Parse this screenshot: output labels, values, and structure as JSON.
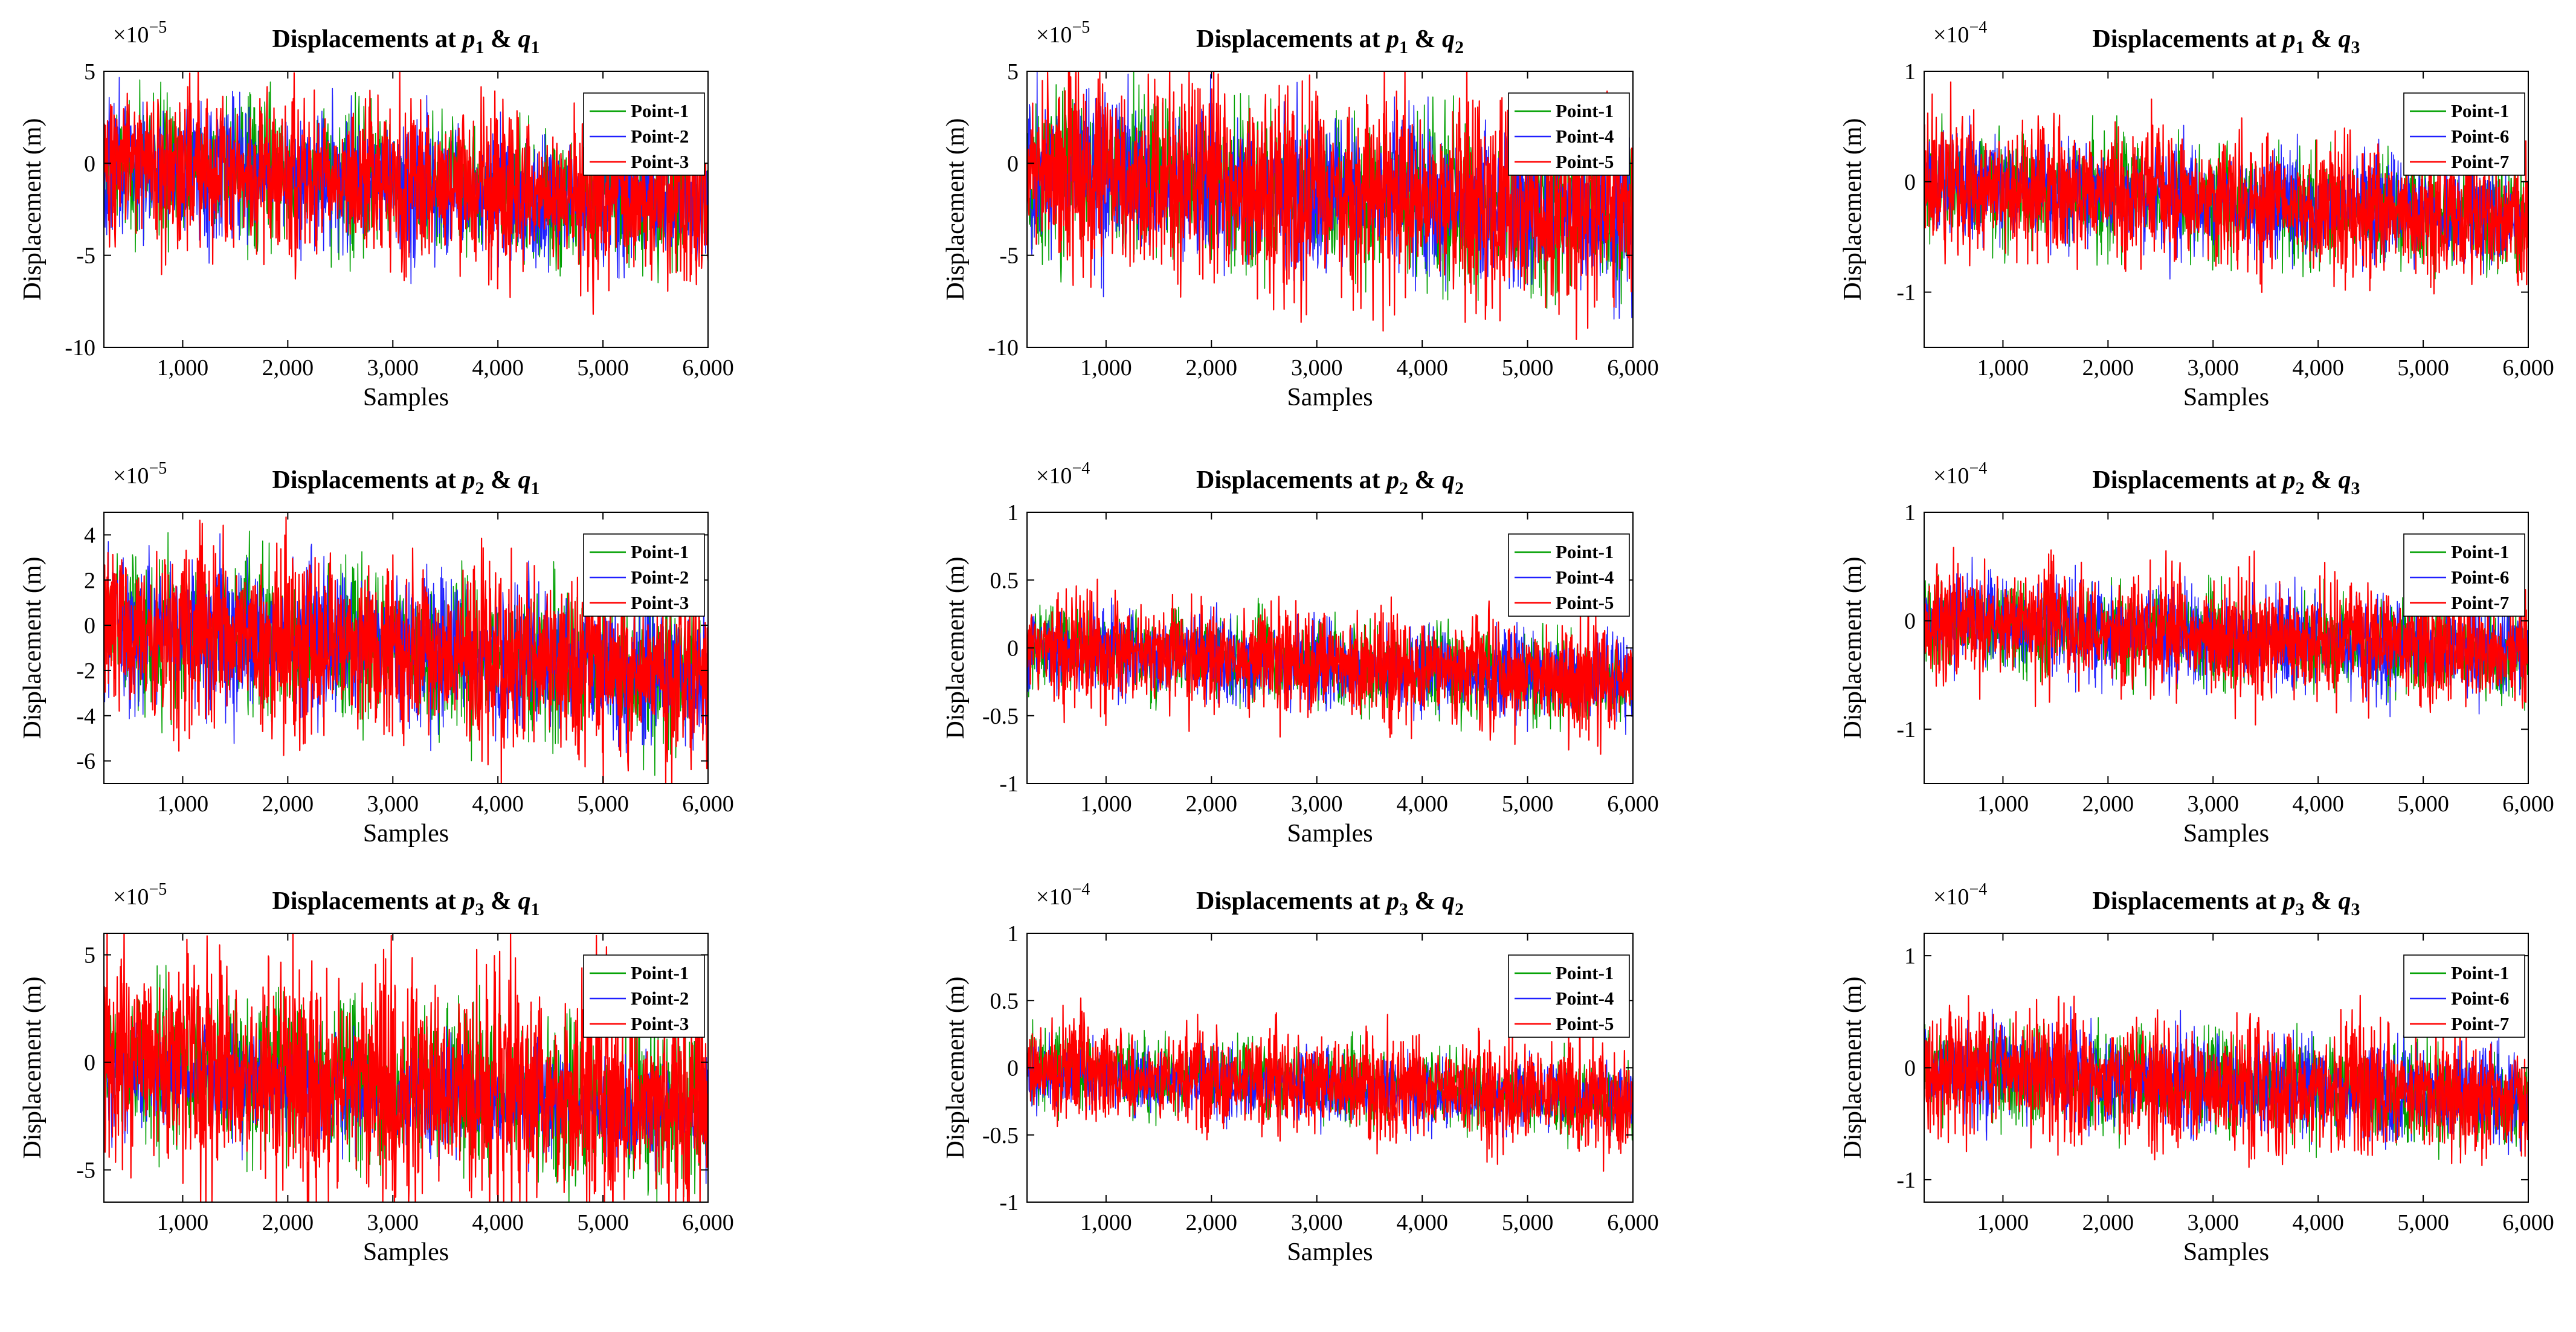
{
  "figure": {
    "description": "3x3 grid of displacement time-history plots"
  },
  "chart_data": [
    {
      "type": "line",
      "title": "Displacements at",
      "title_p": "p",
      "p_sub": "1",
      "title_q": "q",
      "q_sub": "1",
      "amp": "&",
      "xlabel": "Samples",
      "ylabel": "Displacement (m)",
      "xlim": [
        250,
        6000
      ],
      "ylim": [
        -10,
        5
      ],
      "yticks": [
        "5",
        "0",
        "-5",
        "-10"
      ],
      "ytick_values": [
        5,
        0,
        -5,
        -10
      ],
      "xticks": [
        "1,000",
        "2,000",
        "3,000",
        "4,000",
        "5,000",
        "6,000"
      ],
      "xtick_values": [
        1000,
        2000,
        3000,
        4000,
        5000,
        6000
      ],
      "exponent_base": "×10",
      "exponent": "−5",
      "grid": false,
      "legend_position": "top-right",
      "series": [
        {
          "name": "Point-1",
          "color": "#00a000",
          "mean_start": 0,
          "mean_end": -2.2,
          "amplitude": 3.0
        },
        {
          "name": "Point-2",
          "color": "#2020ff",
          "mean_start": 0,
          "mean_end": -2.2,
          "amplitude": 3.0
        },
        {
          "name": "Point-3",
          "color": "#ff0000",
          "mean_start": 0,
          "mean_end": -2.2,
          "amplitude": 3.6
        }
      ]
    },
    {
      "type": "line",
      "title": "Displacements at",
      "title_p": "p",
      "p_sub": "1",
      "title_q": "q",
      "q_sub": "2",
      "amp": "&",
      "xlabel": "Samples",
      "ylabel": "Displacement (m)",
      "xlim": [
        250,
        6000
      ],
      "ylim": [
        -10,
        5
      ],
      "yticks": [
        "5",
        "0",
        "-5",
        "-10"
      ],
      "ytick_values": [
        5,
        0,
        -5,
        -10
      ],
      "xticks": [
        "1,000",
        "2,000",
        "3,000",
        "4,000",
        "5,000",
        "6,000"
      ],
      "xtick_values": [
        1000,
        2000,
        3000,
        4000,
        5000,
        6000
      ],
      "exponent_base": "×10",
      "exponent": "−5",
      "grid": false,
      "legend_position": "top-right",
      "series": [
        {
          "name": "Point-1",
          "color": "#00a000",
          "mean_start": -0.5,
          "mean_end": -2.8,
          "amplitude": 3.5
        },
        {
          "name": "Point-4",
          "color": "#2020ff",
          "mean_start": -0.5,
          "mean_end": -2.8,
          "amplitude": 3.5
        },
        {
          "name": "Point-5",
          "color": "#ff0000",
          "mean_start": -0.5,
          "mean_end": -2.8,
          "amplitude": 4.5
        }
      ]
    },
    {
      "type": "line",
      "title": "Displacements at",
      "title_p": "p",
      "p_sub": "1",
      "title_q": "q",
      "q_sub": "3",
      "amp": "&",
      "xlabel": "Samples",
      "ylabel": "Displacement (m)",
      "xlim": [
        250,
        6000
      ],
      "ylim": [
        -1.5,
        1
      ],
      "yticks": [
        "1",
        "0",
        "-1"
      ],
      "ytick_values": [
        1,
        0,
        -1
      ],
      "xticks": [
        "1,000",
        "2,000",
        "3,000",
        "4,000",
        "5,000",
        "6,000"
      ],
      "xtick_values": [
        1000,
        2000,
        3000,
        4000,
        5000,
        6000
      ],
      "exponent_base": "×10",
      "exponent": "−4",
      "grid": false,
      "legend_position": "top-right",
      "series": [
        {
          "name": "Point-1",
          "color": "#00a000",
          "mean_start": 0,
          "mean_end": -0.35,
          "amplitude": 0.4
        },
        {
          "name": "Point-6",
          "color": "#2020ff",
          "mean_start": 0,
          "mean_end": -0.35,
          "amplitude": 0.4
        },
        {
          "name": "Point-7",
          "color": "#ff0000",
          "mean_start": 0,
          "mean_end": -0.35,
          "amplitude": 0.5
        }
      ]
    },
    {
      "type": "line",
      "title": "Displacements at",
      "title_p": "p",
      "p_sub": "2",
      "title_q": "q",
      "q_sub": "1",
      "amp": "&",
      "xlabel": "Samples",
      "ylabel": "Displacement (m)",
      "xlim": [
        250,
        6000
      ],
      "ylim": [
        -7,
        5
      ],
      "yticks": [
        "4",
        "2",
        "0",
        "-2",
        "-4",
        "-6"
      ],
      "ytick_values": [
        4,
        2,
        0,
        -2,
        -4,
        -6
      ],
      "xticks": [
        "1,000",
        "2,000",
        "3,000",
        "4,000",
        "5,000",
        "6,000"
      ],
      "xtick_values": [
        1000,
        2000,
        3000,
        4000,
        5000,
        6000
      ],
      "exponent_base": "×10",
      "exponent": "−5",
      "grid": false,
      "legend_position": "top-right",
      "series": [
        {
          "name": "Point-1",
          "color": "#00a000",
          "mean_start": 0,
          "mean_end": -2.2,
          "amplitude": 2.6
        },
        {
          "name": "Point-2",
          "color": "#2020ff",
          "mean_start": 0,
          "mean_end": -2.2,
          "amplitude": 2.6
        },
        {
          "name": "Point-3",
          "color": "#ff0000",
          "mean_start": 0,
          "mean_end": -2.2,
          "amplitude": 3.2
        }
      ]
    },
    {
      "type": "line",
      "title": "Displacements at",
      "title_p": "p",
      "p_sub": "2",
      "title_q": "q",
      "q_sub": "2",
      "amp": "&",
      "xlabel": "Samples",
      "ylabel": "Displacement (m)",
      "xlim": [
        250,
        6000
      ],
      "ylim": [
        -1,
        1
      ],
      "yticks": [
        "1",
        "0.5",
        "0",
        "-0.5",
        "-1"
      ],
      "ytick_values": [
        1,
        0.5,
        0,
        -0.5,
        -1
      ],
      "xticks": [
        "1,000",
        "2,000",
        "3,000",
        "4,000",
        "5,000",
        "6,000"
      ],
      "xtick_values": [
        1000,
        2000,
        3000,
        4000,
        5000,
        6000
      ],
      "exponent_base": "×10",
      "exponent": "−4",
      "grid": false,
      "legend_position": "top-right",
      "series": [
        {
          "name": "Point-1",
          "color": "#00a000",
          "mean_start": 0,
          "mean_end": -0.25,
          "amplitude": 0.25
        },
        {
          "name": "Point-4",
          "color": "#2020ff",
          "mean_start": 0,
          "mean_end": -0.25,
          "amplitude": 0.25
        },
        {
          "name": "Point-5",
          "color": "#ff0000",
          "mean_start": 0,
          "mean_end": -0.25,
          "amplitude": 0.32
        }
      ]
    },
    {
      "type": "line",
      "title": "Displacements at",
      "title_p": "p",
      "p_sub": "2",
      "title_q": "q",
      "q_sub": "3",
      "amp": "&",
      "xlabel": "Samples",
      "ylabel": "Displacement (m)",
      "xlim": [
        250,
        6000
      ],
      "ylim": [
        -1.5,
        1
      ],
      "yticks": [
        "1",
        "0",
        "-1"
      ],
      "ytick_values": [
        1,
        0,
        -1
      ],
      "xticks": [
        "1,000",
        "2,000",
        "3,000",
        "4,000",
        "5,000",
        "6,000"
      ],
      "xtick_values": [
        1000,
        2000,
        3000,
        4000,
        5000,
        6000
      ],
      "exponent_base": "×10",
      "exponent": "−4",
      "grid": false,
      "legend_position": "top-right",
      "series": [
        {
          "name": "Point-1",
          "color": "#00a000",
          "mean_start": 0,
          "mean_end": -0.3,
          "amplitude": 0.35
        },
        {
          "name": "Point-6",
          "color": "#2020ff",
          "mean_start": 0,
          "mean_end": -0.3,
          "amplitude": 0.35
        },
        {
          "name": "Point-7",
          "color": "#ff0000",
          "mean_start": 0,
          "mean_end": -0.3,
          "amplitude": 0.45
        }
      ]
    },
    {
      "type": "line",
      "title": "Displacements at",
      "title_p": "p",
      "p_sub": "3",
      "title_q": "q",
      "q_sub": "1",
      "amp": "&",
      "xlabel": "Samples",
      "ylabel": "Displacement (m)",
      "xlim": [
        250,
        6000
      ],
      "ylim": [
        -6.5,
        6
      ],
      "yticks": [
        "5",
        "0",
        "-5"
      ],
      "ytick_values": [
        5,
        0,
        -5
      ],
      "xticks": [
        "1,000",
        "2,000",
        "3,000",
        "4,000",
        "5,000",
        "6,000"
      ],
      "xtick_values": [
        1000,
        2000,
        3000,
        4000,
        5000,
        6000
      ],
      "exponent_base": "×10",
      "exponent": "−5",
      "grid": false,
      "legend_position": "top-right",
      "series": [
        {
          "name": "Point-1",
          "color": "#00a000",
          "mean_start": 0,
          "mean_end": -2.2,
          "amplitude": 3.0
        },
        {
          "name": "Point-2",
          "color": "#2020ff",
          "mean_start": -0.5,
          "mean_end": -2.5,
          "amplitude": 2.0
        },
        {
          "name": "Point-3",
          "color": "#ff0000",
          "mean_start": 0,
          "mean_end": -2.0,
          "amplitude": 4.2
        }
      ]
    },
    {
      "type": "line",
      "title": "Displacements at",
      "title_p": "p",
      "p_sub": "3",
      "title_q": "q",
      "q_sub": "2",
      "amp": "&",
      "xlabel": "Samples",
      "ylabel": "Displacement (m)",
      "xlim": [
        250,
        6000
      ],
      "ylim": [
        -1,
        1
      ],
      "yticks": [
        "1",
        "0.5",
        "0",
        "-0.5",
        "-1"
      ],
      "ytick_values": [
        1,
        0.5,
        0,
        -0.5,
        -1
      ],
      "xticks": [
        "1,000",
        "2,000",
        "3,000",
        "4,000",
        "5,000",
        "6,000"
      ],
      "xtick_values": [
        1000,
        2000,
        3000,
        4000,
        5000,
        6000
      ],
      "exponent_base": "×10",
      "exponent": "−4",
      "grid": false,
      "legend_position": "top-right",
      "series": [
        {
          "name": "Point-1",
          "color": "#00a000",
          "mean_start": 0,
          "mean_end": -0.25,
          "amplitude": 0.22
        },
        {
          "name": "Point-4",
          "color": "#2020ff",
          "mean_start": -0.05,
          "mean_end": -0.25,
          "amplitude": 0.2
        },
        {
          "name": "Point-5",
          "color": "#ff0000",
          "mean_start": 0,
          "mean_end": -0.25,
          "amplitude": 0.32
        }
      ]
    },
    {
      "type": "line",
      "title": "Displacements at",
      "title_p": "p",
      "p_sub": "3",
      "title_q": "q",
      "q_sub": "3",
      "amp": "&",
      "xlabel": "Samples",
      "ylabel": "Displacement (m)",
      "xlim": [
        250,
        6000
      ],
      "ylim": [
        -1.2,
        1.2
      ],
      "yticks": [
        "1",
        "0",
        "-1"
      ],
      "ytick_values": [
        1,
        0,
        -1
      ],
      "xticks": [
        "1,000",
        "2,000",
        "3,000",
        "4,000",
        "5,000",
        "6,000"
      ],
      "xtick_values": [
        1000,
        2000,
        3000,
        4000,
        5000,
        6000
      ],
      "exponent_base": "×10",
      "exponent": "−4",
      "grid": false,
      "legend_position": "top-right",
      "series": [
        {
          "name": "Point-1",
          "color": "#00a000",
          "mean_start": 0,
          "mean_end": -0.3,
          "amplitude": 0.35
        },
        {
          "name": "Point-6",
          "color": "#2020ff",
          "mean_start": 0,
          "mean_end": -0.3,
          "amplitude": 0.35
        },
        {
          "name": "Point-7",
          "color": "#ff0000",
          "mean_start": 0,
          "mean_end": -0.3,
          "amplitude": 0.45
        }
      ]
    }
  ]
}
